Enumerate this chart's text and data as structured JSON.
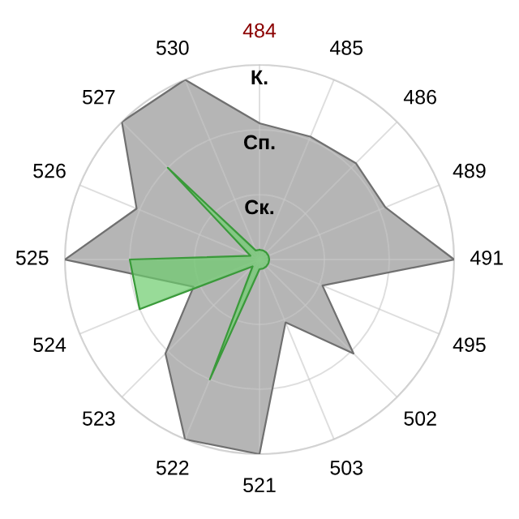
{
  "chart_data": {
    "type": "radar",
    "categories": [
      "484",
      "485",
      "486",
      "489",
      "491",
      "495",
      "502",
      "503",
      "521",
      "522",
      "523",
      "524",
      "525",
      "526",
      "527",
      "530"
    ],
    "colors": [
      "#8b0000",
      "#000000",
      "#000000",
      "#000000",
      "#000000",
      "#000000",
      "#000000",
      "#000000",
      "#000000",
      "#000000",
      "#000000",
      "#000000",
      "#000000",
      "#000000",
      "#000000",
      "#000000"
    ],
    "ylim": [
      0,
      3
    ],
    "yticks": [
      {
        "value": 1,
        "label": "Ск."
      },
      {
        "value": 2,
        "label": "Сп."
      },
      {
        "value": 3,
        "label": "К."
      }
    ],
    "grid": true,
    "series": [
      {
        "color": "#b5b5b5",
        "values": [
          2.1,
          2.05,
          2.1,
          2.1,
          3,
          1.05,
          2.05,
          1.05,
          3,
          3,
          2.05,
          1.1,
          3,
          2.05,
          3,
          3
        ]
      },
      {
        "color": "#6ccc6c",
        "values": [
          0.15,
          0.15,
          0.15,
          0.15,
          0.15,
          0.15,
          0.15,
          0.15,
          0.15,
          2,
          0.15,
          2,
          2,
          0.15,
          2,
          0.15
        ]
      }
    ]
  }
}
